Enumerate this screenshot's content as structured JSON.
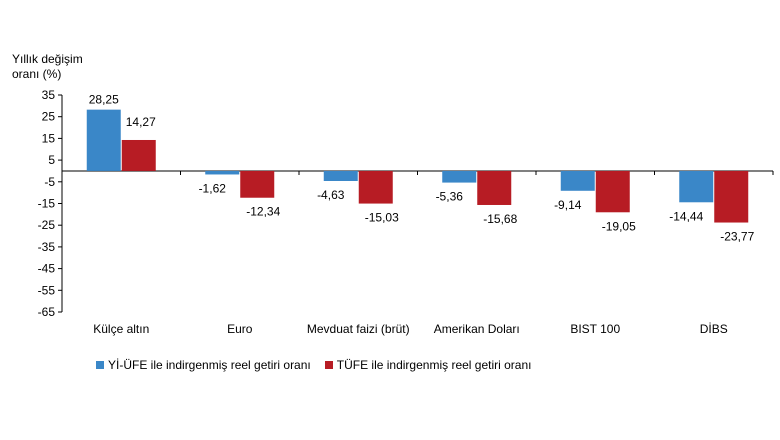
{
  "chart_data": {
    "type": "bar",
    "ylabel_line1": "Yıllık değişim",
    "ylabel_line2": "oranı (%)",
    "ylim": [
      -65,
      35
    ],
    "yticks": [
      35,
      25,
      15,
      5,
      -5,
      -15,
      -25,
      -35,
      -45,
      -55,
      -65
    ],
    "categories": [
      "Külçe altın",
      "Euro",
      "Mevduat faizi (brüt)",
      "Amerikan Doları",
      "BIST 100",
      "DİBS"
    ],
    "series": [
      {
        "name": "Yİ-ÜFE ile indirgenmiş reel getiri oranı",
        "color": "#3a87c8",
        "values": [
          28.25,
          -1.62,
          -4.63,
          -5.36,
          -9.14,
          -14.44
        ],
        "labels": [
          "28,25",
          "-1,62",
          "-4,63",
          "-5,36",
          "-9,14",
          "-14,44"
        ]
      },
      {
        "name": "TÜFE ile indirgenmiş reel getiri oranı",
        "color": "#b71c24",
        "values": [
          14.27,
          -12.34,
          -15.03,
          -15.68,
          -19.05,
          -23.77
        ],
        "labels": [
          "14,27",
          "-12,34",
          "-15,03",
          "-15,68",
          "-19,05",
          "-23,77"
        ]
      }
    ],
    "grid": false,
    "legend_position": "bottom"
  }
}
